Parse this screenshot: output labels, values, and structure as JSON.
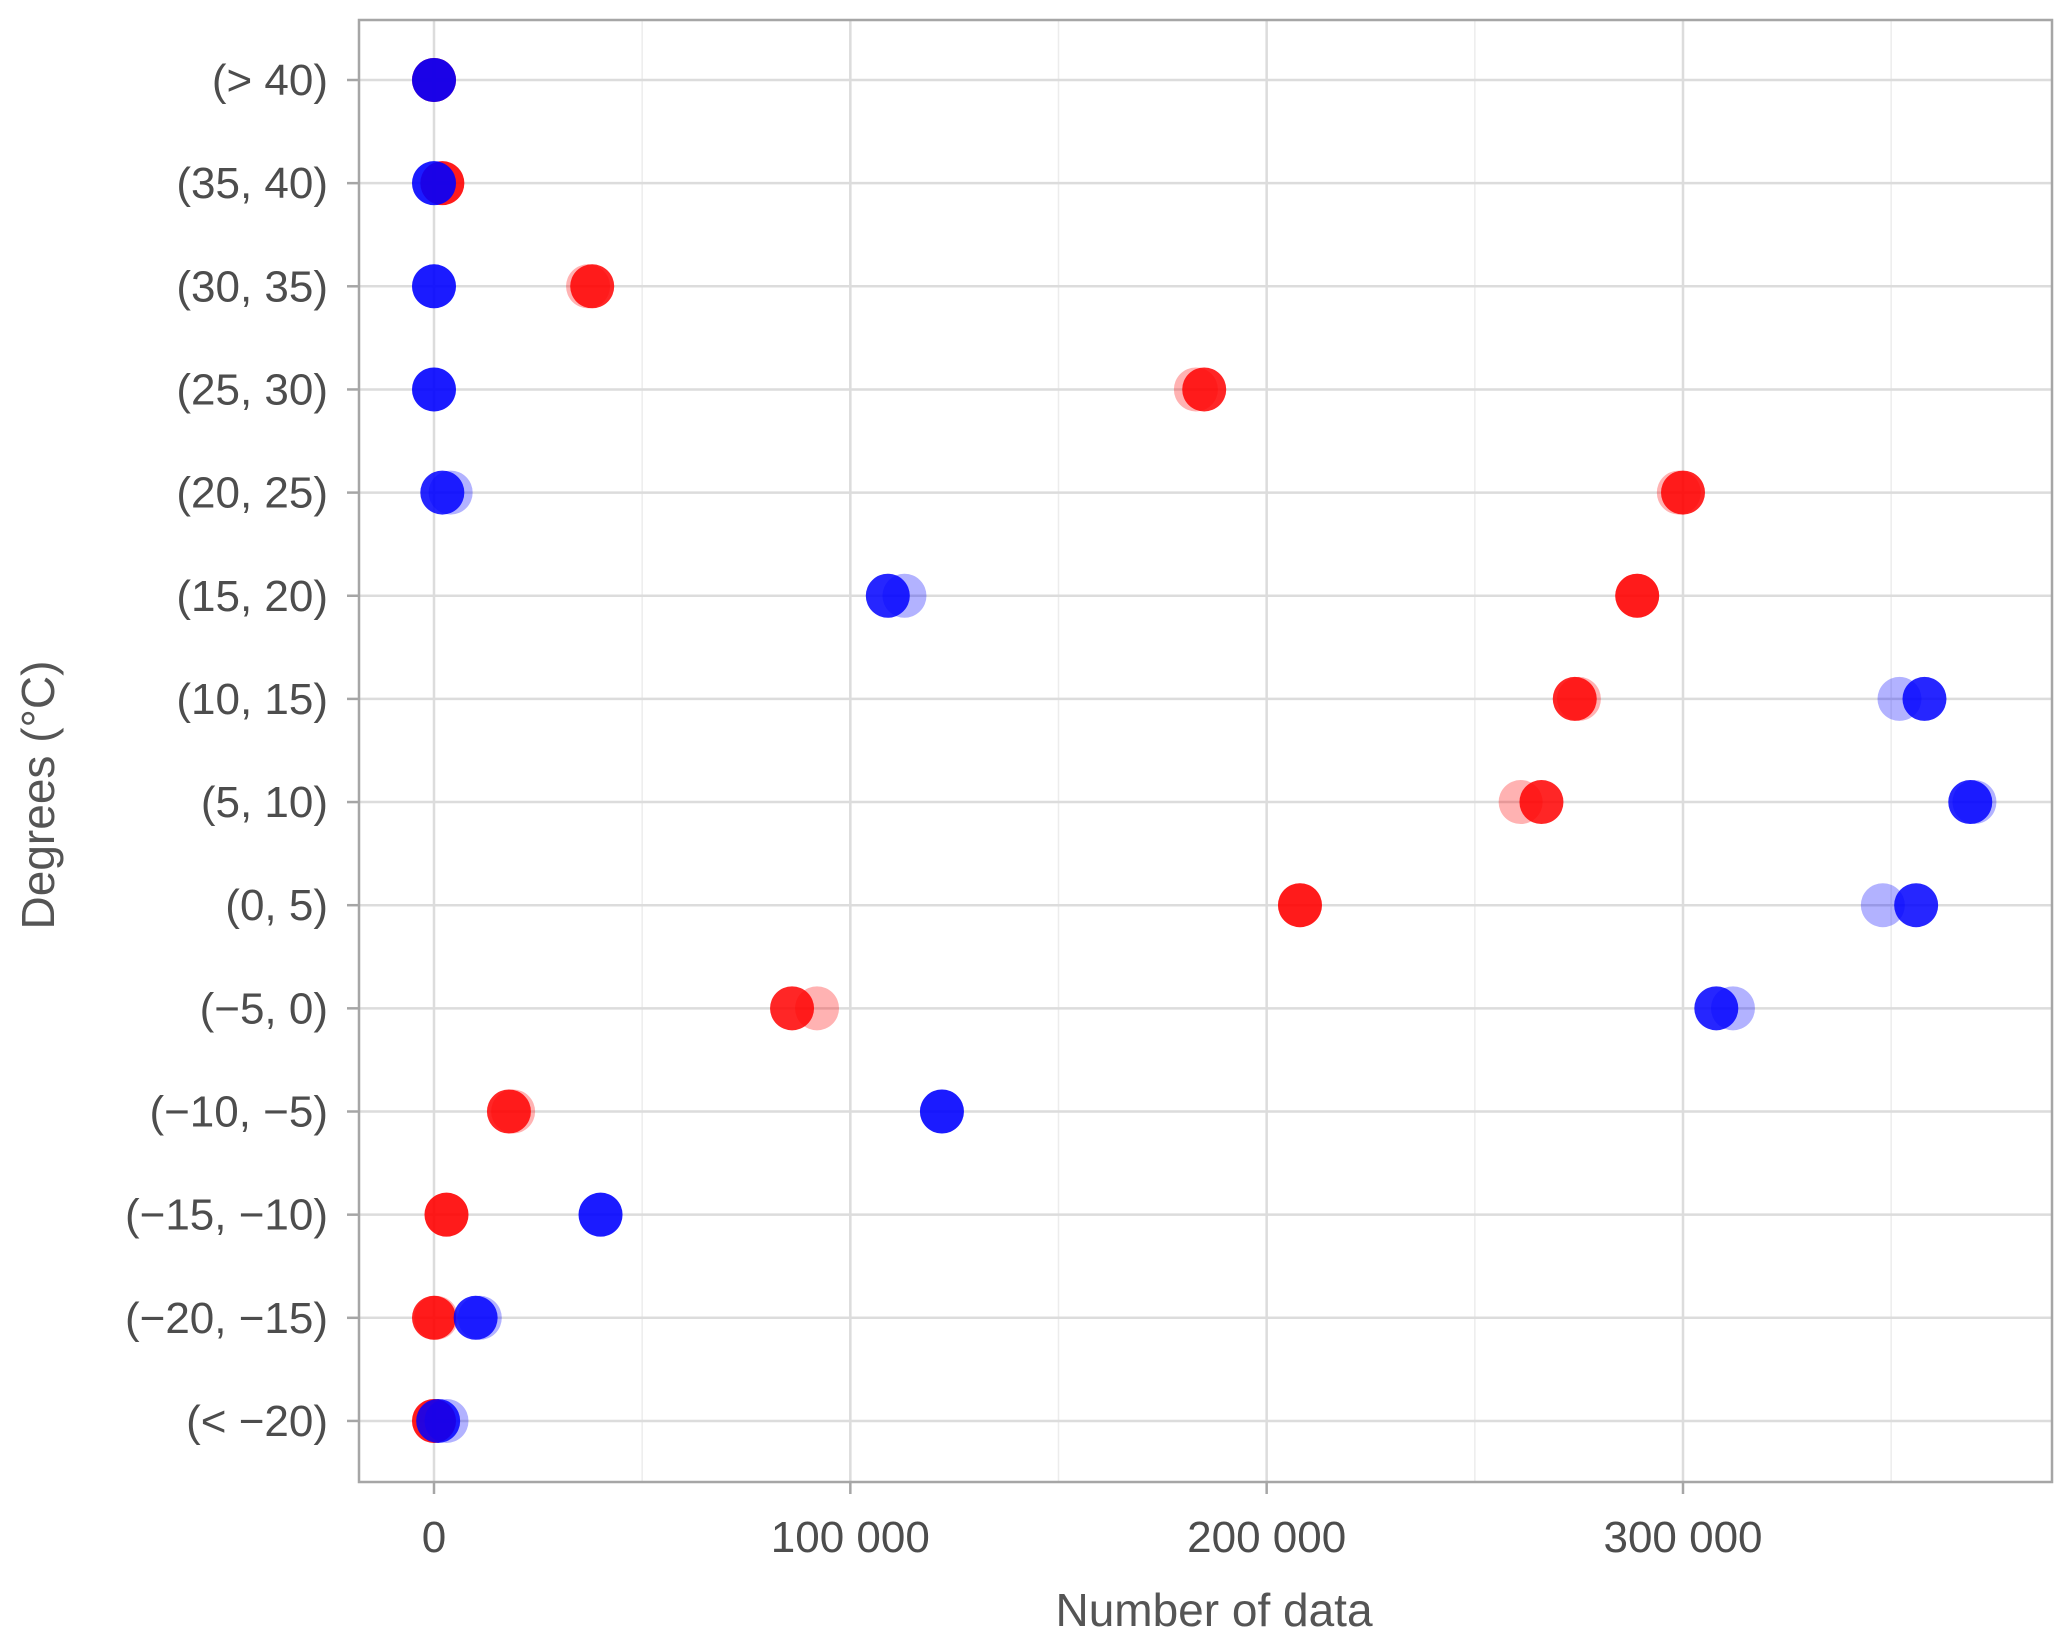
{
  "chart_data": {
    "type": "scatter",
    "xlabel": "Number of data",
    "ylabel": "Degrees (°C)",
    "xlim": [
      -18000,
      388000
    ],
    "x_ticks": [
      0,
      100000,
      200000,
      300000
    ],
    "x_tick_labels": [
      "0",
      "100 000",
      "200 000",
      "300 000"
    ],
    "categories": [
      "(> 40)",
      "(35, 40)",
      "(30, 35)",
      "(25, 30)",
      "(20, 25)",
      "(15, 20)",
      "(10, 15)",
      "(5, 10)",
      "(0, 5)",
      "(−5, 0)",
      "(−10, −5)",
      "(−15, −10)",
      "(−20, −15)",
      "(< −20)"
    ],
    "grid": true,
    "legend": "none",
    "series": [
      {
        "color": "#ff0000",
        "opacity": 0.3,
        "values": [
          0,
          2000,
          37000,
          183000,
          299000,
          289000,
          275000,
          261000,
          208000,
          92000,
          19000,
          3000,
          500,
          0
        ]
      },
      {
        "color": "#ff0000",
        "opacity": 0.85,
        "values": [
          0,
          2000,
          38000,
          185000,
          300000,
          289000,
          274000,
          266000,
          208000,
          86000,
          18000,
          3000,
          0,
          0
        ]
      },
      {
        "color": "#0000ff",
        "opacity": 0.3,
        "values": [
          0,
          0,
          0,
          0,
          4000,
          113000,
          352000,
          370000,
          348000,
          312000,
          122000,
          40000,
          11000,
          3000
        ]
      },
      {
        "color": "#0000ff",
        "opacity": 0.85,
        "values": [
          0,
          0,
          0,
          0,
          2000,
          109000,
          358000,
          369000,
          356000,
          308000,
          122000,
          40000,
          10000,
          1000
        ]
      }
    ]
  }
}
